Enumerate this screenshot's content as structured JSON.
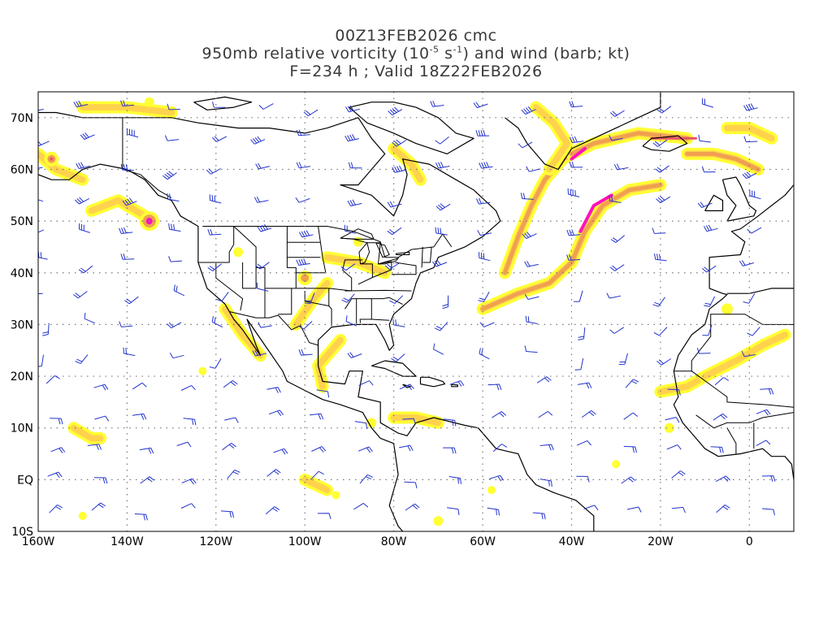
{
  "title": {
    "line1": "00Z13FEB2026 cmc",
    "line2_prefix": "950mb relative vorticity (10",
    "line2_exp1": "-5",
    "line2_mid": " s",
    "line2_exp2": "-1",
    "line2_suffix": ") and wind (barb; kt)",
    "line3": "F=234 h ; Valid 18Z22FEB2026"
  },
  "axes": {
    "lat_labels": [
      "70N",
      "60N",
      "50N",
      "40N",
      "30N",
      "20N",
      "10N",
      "EQ",
      "10S"
    ],
    "lon_labels": [
      "160W",
      "140W",
      "120W",
      "100W",
      "80W",
      "60W",
      "40W",
      "20W",
      "0"
    ]
  },
  "colors": {
    "shade_low": "#ffff33",
    "shade_mid": "#ffd24d",
    "shade_orange": "#f0a050",
    "shade_red": "#e8506a",
    "shade_magenta": "#ff10c0",
    "barb": "#2233cc",
    "coast": "#000000",
    "grid": "#777777"
  },
  "map": {
    "lon_range": [
      -160,
      10
    ],
    "lat_range": [
      -10,
      75
    ],
    "projection": "cylindrical equidistant",
    "grid": "dotted every 20 deg lon / 10 deg lat",
    "vorticity_shading": "yellow-orange-red-magenta bands",
    "wind_barbs": "blue"
  }
}
